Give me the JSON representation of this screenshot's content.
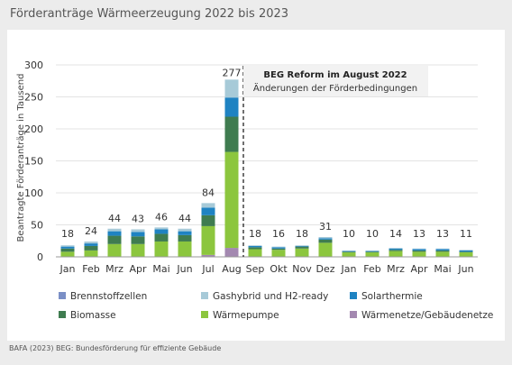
{
  "title": "Förderanträge Wärmeerzeugung 2022 bis 2023",
  "footer": "BAFA (2023) BEG: Bundesförderung für effiziente Gebäude",
  "annotation": {
    "title": "BEG Reform im August 2022",
    "subtitle": "Änderungen der Förderbedingungen"
  },
  "chart_data": {
    "type": "bar",
    "stacked": true,
    "ylabel": "Beantragte Förderanträge in Tausend",
    "ylim": [
      0,
      300
    ],
    "yticks": [
      0,
      50,
      100,
      150,
      200,
      250,
      300
    ],
    "grid": true,
    "legend_position": "bottom",
    "categories": [
      "Jan",
      "Feb",
      "Mrz",
      "Apr",
      "Mai",
      "Jun",
      "Jul",
      "Aug",
      "Sep",
      "Okt",
      "Nov",
      "Dez",
      "Jan",
      "Feb",
      "Mrz",
      "Apr",
      "Mai",
      "Jun"
    ],
    "totals": [
      18,
      24,
      44,
      43,
      46,
      44,
      84,
      277,
      18,
      16,
      18,
      31,
      10,
      10,
      14,
      13,
      13,
      11
    ],
    "reform_after_index": 7,
    "series": [
      {
        "name": "Brennstoffzellen",
        "color": "#7b8fc6",
        "values": [
          0,
          0,
          0,
          0,
          0,
          0,
          0,
          0,
          0,
          0,
          0,
          0,
          0,
          0,
          0,
          0,
          0,
          0
        ]
      },
      {
        "name": "Wärmenetze/Gebäudenetze",
        "color": "#a388b0",
        "values": [
          0,
          0,
          0,
          0,
          0,
          0,
          3,
          14,
          0,
          0,
          0,
          0,
          0,
          0,
          0,
          0,
          0,
          0
        ]
      },
      {
        "name": "Wärmepumpe",
        "color": "#8cc63e",
        "values": [
          8,
          10,
          20,
          20,
          24,
          24,
          45,
          150,
          12,
          11,
          13,
          22,
          7,
          7,
          9,
          8,
          8,
          7
        ]
      },
      {
        "name": "Biomasse",
        "color": "#3f7c50",
        "values": [
          5,
          7,
          13,
          12,
          12,
          10,
          17,
          55,
          3,
          2,
          3,
          5,
          1,
          1,
          2,
          2,
          2,
          1
        ]
      },
      {
        "name": "Solarthermie",
        "color": "#1f83c2",
        "values": [
          3,
          4,
          7,
          7,
          7,
          6,
          12,
          30,
          2,
          2,
          1,
          2,
          1,
          1,
          2,
          2,
          2,
          2
        ]
      },
      {
        "name": "Gashybrid und H2-ready",
        "color": "#a7cad8",
        "values": [
          2,
          3,
          4,
          4,
          3,
          4,
          7,
          28,
          1,
          1,
          1,
          2,
          1,
          1,
          1,
          1,
          1,
          1
        ]
      }
    ],
    "legend_order": [
      "Brennstoffzellen",
      "Gashybrid und H2-ready",
      "Solarthermie",
      "Biomasse",
      "Wärmepumpe",
      "Wärmenetze/Gebäudenetze"
    ]
  }
}
